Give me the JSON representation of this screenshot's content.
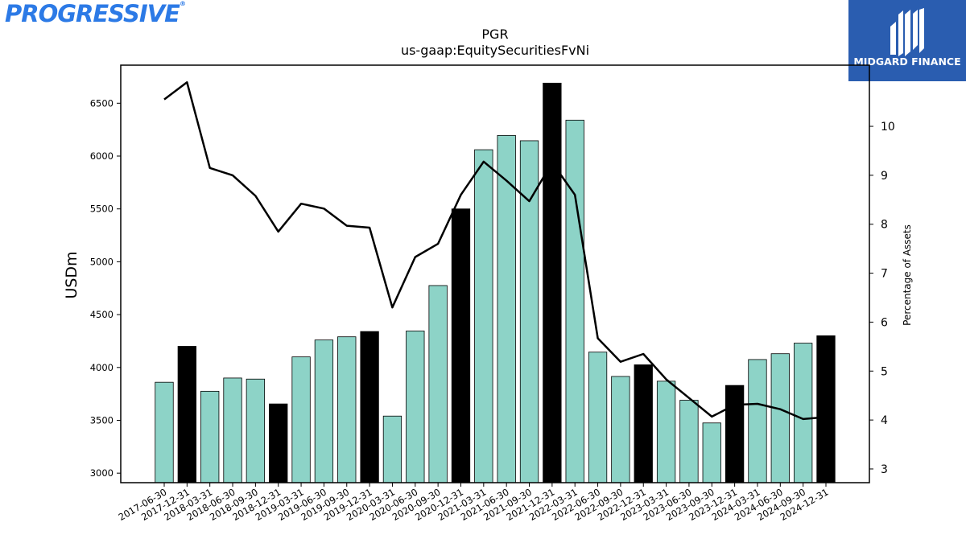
{
  "logos": {
    "left_text": "PROGRESSIVE",
    "left_color": "#2c7ae6",
    "right_text": "MIDGARD FINANCE",
    "right_bg": "#2a5db0"
  },
  "colors": {
    "bar_regular": "#8dd3c7",
    "bar_highlight": "#000000",
    "line": "#000000"
  },
  "chart_data": {
    "type": "bar",
    "title": "PGR",
    "subtitle": "us-gaap:EquitySecuritiesFvNi",
    "ylabel": "USDm",
    "y2label": "Percentage of Assets",
    "ylim": [
      2910,
      6860
    ],
    "y2lim": [
      2.72,
      11.25
    ],
    "yticks": [
      3000,
      3500,
      4000,
      4500,
      5000,
      5500,
      6000,
      6500
    ],
    "y2ticks": [
      3,
      4,
      5,
      6,
      7,
      8,
      9,
      10
    ],
    "categories": [
      "2017-06-30",
      "2017-12-31",
      "2018-03-31",
      "2018-06-30",
      "2018-09-30",
      "2018-12-31",
      "2019-03-31",
      "2019-06-30",
      "2019-09-30",
      "2019-12-31",
      "2020-03-31",
      "2020-06-30",
      "2020-09-30",
      "2020-12-31",
      "2021-03-31",
      "2021-06-30",
      "2021-09-30",
      "2021-12-31",
      "2022-03-31",
      "2022-06-30",
      "2022-09-30",
      "2022-12-31",
      "2023-03-31",
      "2023-06-30",
      "2023-09-30",
      "2023-12-31",
      "2024-03-31",
      "2024-06-30",
      "2024-09-30",
      "2024-12-31"
    ],
    "series": [
      {
        "kind": "bar",
        "axis": "left",
        "values": [
          3860,
          4200,
          3775,
          3900,
          3890,
          3655,
          4100,
          4260,
          4290,
          4340,
          3540,
          4345,
          4775,
          5500,
          6060,
          6195,
          6145,
          6690,
          6340,
          4145,
          3915,
          4025,
          3870,
          3690,
          3475,
          3830,
          4075,
          4130,
          4230,
          4300
        ],
        "highlight": [
          false,
          true,
          false,
          false,
          false,
          true,
          false,
          false,
          false,
          true,
          false,
          false,
          false,
          true,
          false,
          false,
          false,
          true,
          false,
          false,
          false,
          true,
          false,
          false,
          false,
          true,
          false,
          false,
          false,
          true
        ]
      },
      {
        "kind": "line",
        "axis": "right",
        "values": [
          10.55,
          10.9,
          9.15,
          9.0,
          8.58,
          7.85,
          8.42,
          8.32,
          7.97,
          7.93,
          6.3,
          7.33,
          7.6,
          8.6,
          9.28,
          8.89,
          8.47,
          9.26,
          8.6,
          5.67,
          5.19,
          5.35,
          4.83,
          4.45,
          4.07,
          4.31,
          4.33,
          4.22,
          4.02,
          4.06
        ]
      }
    ],
    "grid": false,
    "legend": "none"
  }
}
